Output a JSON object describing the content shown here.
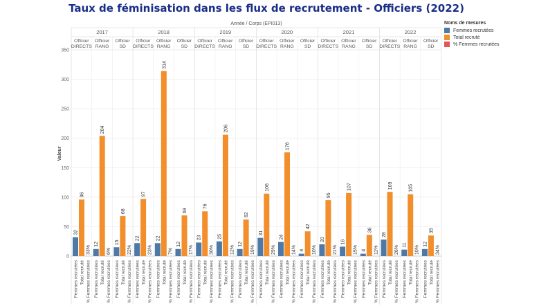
{
  "chart_data": {
    "type": "bar",
    "title": "Taux de féminisation dans les flux de recrutement - Officiers (2022)",
    "column_header": "Année / Corps (EPI013)",
    "ylabel": "Valeur",
    "ylim": [
      0,
      350
    ],
    "yticks": [
      0,
      50,
      100,
      150,
      200,
      250,
      300,
      350
    ],
    "grid": true,
    "legend_position": "right",
    "legend_title": "Noms de mesures",
    "measures": [
      {
        "name": "Femmes recrutées",
        "axis_label": "Femmes recrutées",
        "color": "#4e79a7"
      },
      {
        "name": "Total recruté",
        "axis_label": "Total recruté",
        "color": "#f28e2b"
      },
      {
        "name": "% Femmes recrutées",
        "axis_label": "% Femmes recrutées",
        "color": "#e15759"
      }
    ],
    "years": [
      {
        "year": "2017",
        "groups": [
          {
            "corps": "Officier DIRECTS",
            "femmes": 32,
            "total": 96,
            "pct": "33%"
          },
          {
            "corps": "Officier RANG",
            "femmes": 12,
            "total": 204,
            "pct": "6%"
          },
          {
            "corps": "Officier SD",
            "femmes": 15,
            "total": 68,
            "pct": "22%"
          }
        ]
      },
      {
        "year": "2018",
        "groups": [
          {
            "corps": "Officier DIRECTS",
            "femmes": 22,
            "total": 97,
            "pct": "23%"
          },
          {
            "corps": "Officier RANG",
            "femmes": 22,
            "total": 314,
            "pct": "7%"
          },
          {
            "corps": "Officier SD",
            "femmes": 12,
            "total": 69,
            "pct": "17%"
          }
        ]
      },
      {
        "year": "2019",
        "groups": [
          {
            "corps": "Officier DIRECTS",
            "femmes": 23,
            "total": 76,
            "pct": "30%"
          },
          {
            "corps": "Officier RANG",
            "femmes": 25,
            "total": 206,
            "pct": "12%"
          },
          {
            "corps": "Officier SD",
            "femmes": 12,
            "total": 62,
            "pct": "19%"
          }
        ]
      },
      {
        "year": "2020",
        "groups": [
          {
            "corps": "Officier DIRECTS",
            "femmes": 31,
            "total": 106,
            "pct": "29%"
          },
          {
            "corps": "Officier RANG",
            "femmes": 24,
            "total": 176,
            "pct": "14%"
          },
          {
            "corps": "Officier SD",
            "femmes": 4,
            "total": 42,
            "pct": "10%"
          }
        ]
      },
      {
        "year": "2021",
        "groups": [
          {
            "corps": "Officier DIRECTS",
            "femmes": 20,
            "total": 95,
            "pct": "21%"
          },
          {
            "corps": "Officier RANG",
            "femmes": 16,
            "total": 107,
            "pct": "15%"
          },
          {
            "corps": "Officier SD",
            "femmes": 4,
            "total": 36,
            "pct": "11%"
          }
        ]
      },
      {
        "year": "2022",
        "groups": [
          {
            "corps": "Officier DIRECTS",
            "femmes": 28,
            "total": 109,
            "pct": "26%"
          },
          {
            "corps": "Officier RANG",
            "femmes": 11,
            "total": 105,
            "pct": "10%"
          },
          {
            "corps": "Officier SD",
            "femmes": 12,
            "total": 35,
            "pct": "34%"
          }
        ]
      }
    ]
  }
}
